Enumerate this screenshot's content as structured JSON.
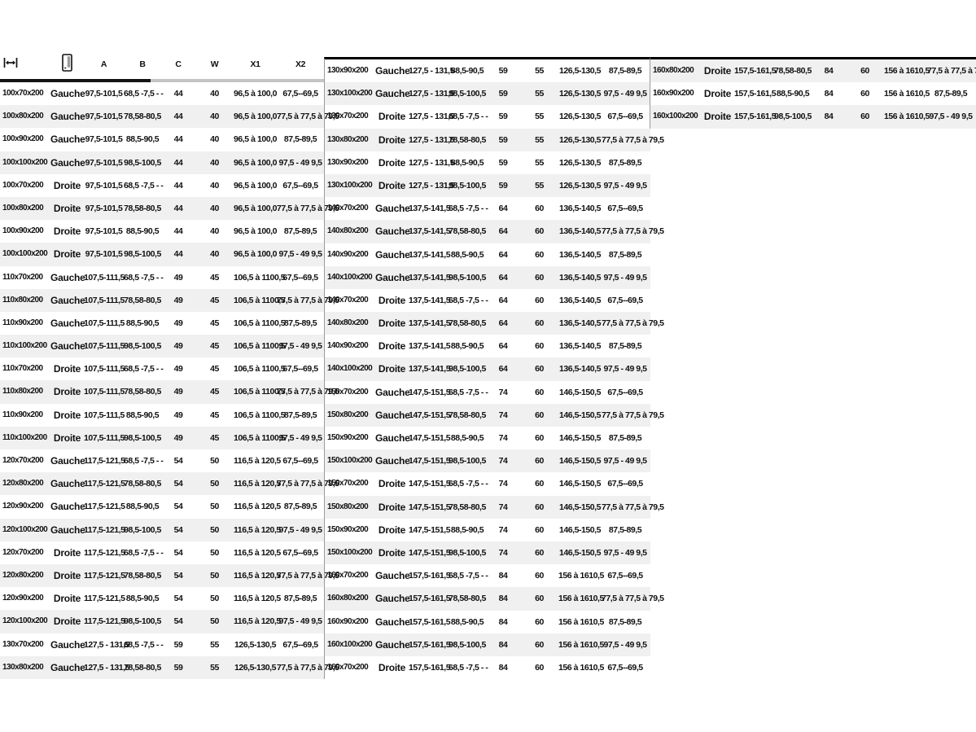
{
  "colors": {
    "stripe": "#f0f0f0",
    "text": "#111111",
    "border_black": "#000000",
    "border_gray": "#c4c4c4"
  },
  "column_names": [
    "size",
    "side",
    "a",
    "b",
    "c",
    "w",
    "x1",
    "x2"
  ],
  "header": {
    "icons": [
      {
        "name": "width-dimension-icon"
      },
      {
        "name": "door-icon"
      }
    ],
    "labels": [
      "A",
      "B",
      "C",
      "W",
      "X1",
      "X2"
    ]
  },
  "tables": [
    {
      "name": "table-1",
      "stripe": "even",
      "rows": [
        [
          "100x70x200",
          "Gauche",
          "97,5-101,5",
          "68,5 -7,5 - -",
          "44",
          "40",
          "96,5 à 100,0",
          "67,5--69,5"
        ],
        [
          "100x80x200",
          "Gauche",
          "97,5-101,5",
          "78,58-80,5",
          "44",
          "40",
          "96,5 à 100,0",
          "77,5 à 77,5 à 79,5"
        ],
        [
          "100x90x200",
          "Gauche",
          "97,5-101,5",
          "88,5-90,5",
          "44",
          "40",
          "96,5 à 100,0",
          "87,5-89,5"
        ],
        [
          "100x100x200",
          "Gauche",
          "97,5-101,5",
          "98,5-100,5",
          "44",
          "40",
          "96,5 à 100,0",
          "97,5 - 49 9,5"
        ],
        [
          "100x70x200",
          "Droite",
          "97,5-101,5",
          "68,5 -7,5 - -",
          "44",
          "40",
          "96,5 à 100,0",
          "67,5--69,5"
        ],
        [
          "100x80x200",
          "Droite",
          "97,5-101,5",
          "78,58-80,5",
          "44",
          "40",
          "96,5 à 100,0",
          "77,5 à 77,5 à 79,5"
        ],
        [
          "100x90x200",
          "Droite",
          "97,5-101,5",
          "88,5-90,5",
          "44",
          "40",
          "96,5 à 100,0",
          "87,5-89,5"
        ],
        [
          "100x100x200",
          "Droite",
          "97,5-101,5",
          "98,5-100,5",
          "44",
          "40",
          "96,5 à 100,0",
          "97,5 - 49 9,5"
        ],
        [
          "110x70x200",
          "Gauche",
          "107,5-111,5",
          "68,5 -7,5 - -",
          "49",
          "45",
          "106,5 à 1100,5",
          "67,5--69,5"
        ],
        [
          "110x80x200",
          "Gauche",
          "107,5-111,5",
          "78,58-80,5",
          "49",
          "45",
          "106,5 à 1100,5",
          "77,5 à 77,5 à 79,5"
        ],
        [
          "110x90x200",
          "Gauche",
          "107,5-111,5",
          "88,5-90,5",
          "49",
          "45",
          "106,5 à 1100,5",
          "87,5-89,5"
        ],
        [
          "110x100x200",
          "Gauche",
          "107,5-111,5",
          "98,5-100,5",
          "49",
          "45",
          "106,5 à 1100,5",
          "97,5 - 49 9,5"
        ],
        [
          "110x70x200",
          "Droite",
          "107,5-111,5",
          "68,5 -7,5 - -",
          "49",
          "45",
          "106,5 à 1100,5",
          "67,5--69,5"
        ],
        [
          "110x80x200",
          "Droite",
          "107,5-111,5",
          "78,58-80,5",
          "49",
          "45",
          "106,5 à 1100,5",
          "77,5 à 77,5 à 79,5"
        ],
        [
          "110x90x200",
          "Droite",
          "107,5-111,5",
          "88,5-90,5",
          "49",
          "45",
          "106,5 à 1100,5",
          "87,5-89,5"
        ],
        [
          "110x100x200",
          "Droite",
          "107,5-111,5",
          "98,5-100,5",
          "49",
          "45",
          "106,5 à 1100,5",
          "97,5 - 49 9,5"
        ],
        [
          "120x70x200",
          "Gauche",
          "117,5-121,5",
          "68,5 -7,5 - -",
          "54",
          "50",
          "116,5 à 120,5",
          "67,5--69,5"
        ],
        [
          "120x80x200",
          "Gauche",
          "117,5-121,5",
          "78,58-80,5",
          "54",
          "50",
          "116,5 à 120,5",
          "77,5 à 77,5 à 79,5"
        ],
        [
          "120x90x200",
          "Gauche",
          "117,5-121,5",
          "88,5-90,5",
          "54",
          "50",
          "116,5 à 120,5",
          "87,5-89,5"
        ],
        [
          "120x100x200",
          "Gauche",
          "117,5-121,5",
          "98,5-100,5",
          "54",
          "50",
          "116,5 à 120,5",
          "97,5 - 49 9,5"
        ],
        [
          "120x70x200",
          "Droite",
          "117,5-121,5",
          "68,5 -7,5 - -",
          "54",
          "50",
          "116,5 à 120,5",
          "67,5--69,5"
        ],
        [
          "120x80x200",
          "Droite",
          "117,5-121,5",
          "78,58-80,5",
          "54",
          "50",
          "116,5 à 120,5",
          "77,5 à 77,5 à 79,5"
        ],
        [
          "120x90x200",
          "Droite",
          "117,5-121,5",
          "88,5-90,5",
          "54",
          "50",
          "116,5 à 120,5",
          "87,5-89,5"
        ],
        [
          "120x100x200",
          "Droite",
          "117,5-121,5",
          "98,5-100,5",
          "54",
          "50",
          "116,5 à 120,5",
          "97,5 - 49 9,5"
        ],
        [
          "130x70x200",
          "Gauche",
          "127,5 - 131,5",
          "68,5 -7,5 - -",
          "59",
          "55",
          "126,5-130,5",
          "67,5--69,5"
        ],
        [
          "130x80x200",
          "Gauche",
          "127,5 - 131,5",
          "78,58-80,5",
          "59",
          "55",
          "126,5-130,5",
          "77,5 à 77,5 à 79,5"
        ]
      ]
    },
    {
      "name": "table-2",
      "stripe": "even",
      "rows": [
        [
          "130x90x200",
          "Gauche",
          "127,5 - 131,5",
          "88,5-90,5",
          "59",
          "55",
          "126,5-130,5",
          "87,5-89,5"
        ],
        [
          "130x100x200",
          "Gauche",
          "127,5 - 131,5",
          "98,5-100,5",
          "59",
          "55",
          "126,5-130,5",
          "97,5 - 49 9,5"
        ],
        [
          "130x70x200",
          "Droite",
          "127,5 - 131,5",
          "68,5 -7,5 - -",
          "59",
          "55",
          "126,5-130,5",
          "67,5--69,5"
        ],
        [
          "130x80x200",
          "Droite",
          "127,5 - 131,5",
          "78,58-80,5",
          "59",
          "55",
          "126,5-130,5",
          "77,5 à 77,5 à 79,5"
        ],
        [
          "130x90x200",
          "Droite",
          "127,5 - 131,5",
          "88,5-90,5",
          "59",
          "55",
          "126,5-130,5",
          "87,5-89,5"
        ],
        [
          "130x100x200",
          "Droite",
          "127,5 - 131,5",
          "98,5-100,5",
          "59",
          "55",
          "126,5-130,5",
          "97,5 - 49 9,5"
        ],
        [
          "140x70x200",
          "Gauche",
          "137,5-141,5",
          "68,5 -7,5 - -",
          "64",
          "60",
          "136,5-140,5",
          "67,5--69,5"
        ],
        [
          "140x80x200",
          "Gauche",
          "137,5-141,5",
          "78,58-80,5",
          "64",
          "60",
          "136,5-140,5",
          "77,5 à 77,5 à 79,5"
        ],
        [
          "140x90x200",
          "Gauche",
          "137,5-141,5",
          "88,5-90,5",
          "64",
          "60",
          "136,5-140,5",
          "87,5-89,5"
        ],
        [
          "140x100x200",
          "Gauche",
          "137,5-141,5",
          "98,5-100,5",
          "64",
          "60",
          "136,5-140,5",
          "97,5 - 49 9,5"
        ],
        [
          "140x70x200",
          "Droite",
          "137,5-141,5",
          "68,5 -7,5 - -",
          "64",
          "60",
          "136,5-140,5",
          "67,5--69,5"
        ],
        [
          "140x80x200",
          "Droite",
          "137,5-141,5",
          "78,58-80,5",
          "64",
          "60",
          "136,5-140,5",
          "77,5 à 77,5 à 79,5"
        ],
        [
          "140x90x200",
          "Droite",
          "137,5-141,5",
          "88,5-90,5",
          "64",
          "60",
          "136,5-140,5",
          "87,5-89,5"
        ],
        [
          "140x100x200",
          "Droite",
          "137,5-141,5",
          "98,5-100,5",
          "64",
          "60",
          "136,5-140,5",
          "97,5 - 49 9,5"
        ],
        [
          "150x70x200",
          "Gauche",
          "147,5-151,5",
          "68,5 -7,5 - -",
          "74",
          "60",
          "146,5-150,5",
          "67,5--69,5"
        ],
        [
          "150x80x200",
          "Gauche",
          "147,5-151,5",
          "78,58-80,5",
          "74",
          "60",
          "146,5-150,5",
          "77,5 à 77,5 à 79,5"
        ],
        [
          "150x90x200",
          "Gauche",
          "147,5-151,5",
          "88,5-90,5",
          "74",
          "60",
          "146,5-150,5",
          "87,5-89,5"
        ],
        [
          "150x100x200",
          "Gauche",
          "147,5-151,5",
          "98,5-100,5",
          "74",
          "60",
          "146,5-150,5",
          "97,5 - 49 9,5"
        ],
        [
          "150x70x200",
          "Droite",
          "147,5-151,5",
          "68,5 -7,5 - -",
          "74",
          "60",
          "146,5-150,5",
          "67,5--69,5"
        ],
        [
          "150x80x200",
          "Droite",
          "147,5-151,5",
          "78,58-80,5",
          "74",
          "60",
          "146,5-150,5",
          "77,5 à 77,5 à 79,5"
        ],
        [
          "150x90x200",
          "Droite",
          "147,5-151,5",
          "88,5-90,5",
          "74",
          "60",
          "146,5-150,5",
          "87,5-89,5"
        ],
        [
          "150x100x200",
          "Droite",
          "147,5-151,5",
          "98,5-100,5",
          "74",
          "60",
          "146,5-150,5",
          "97,5 - 49 9,5"
        ],
        [
          "160x70x200",
          "Gauche",
          "157,5-161,5",
          "68,5 -7,5 - -",
          "84",
          "60",
          "156 à 1610,5",
          "67,5--69,5"
        ],
        [
          "160x80x200",
          "Gauche",
          "157,5-161,5",
          "78,58-80,5",
          "84",
          "60",
          "156 à 1610,5",
          "77,5 à 77,5 à 79,5"
        ],
        [
          "160x90x200",
          "Gauche",
          "157,5-161,5",
          "88,5-90,5",
          "84",
          "60",
          "156 à 1610,5",
          "87,5-89,5"
        ],
        [
          "160x100x200",
          "Gauche",
          "157,5-161,5",
          "98,5-100,5",
          "84",
          "60",
          "156 à 1610,5",
          "97,5 - 49 9,5"
        ],
        [
          "160x70x200",
          "Droite",
          "157,5-161,5",
          "68,5 -7,5 - -",
          "84",
          "60",
          "156 à 1610,5",
          "67,5--69,5"
        ]
      ]
    },
    {
      "name": "table-3",
      "stripe": "odd",
      "rows": [
        [
          "160x80x200",
          "Droite",
          "157,5-161,5",
          "78,58-80,5",
          "84",
          "60",
          "156 à 1610,5",
          "77,5 à 77,5 à 79,5"
        ],
        [
          "160x90x200",
          "Droite",
          "157,5-161,5",
          "88,5-90,5",
          "84",
          "60",
          "156 à 1610,5",
          "87,5-89,5"
        ],
        [
          "160x100x200",
          "Droite",
          "157,5-161,5",
          "98,5-100,5",
          "84",
          "60",
          "156 à 1610,5",
          "97,5 - 49 9,5"
        ]
      ]
    }
  ]
}
